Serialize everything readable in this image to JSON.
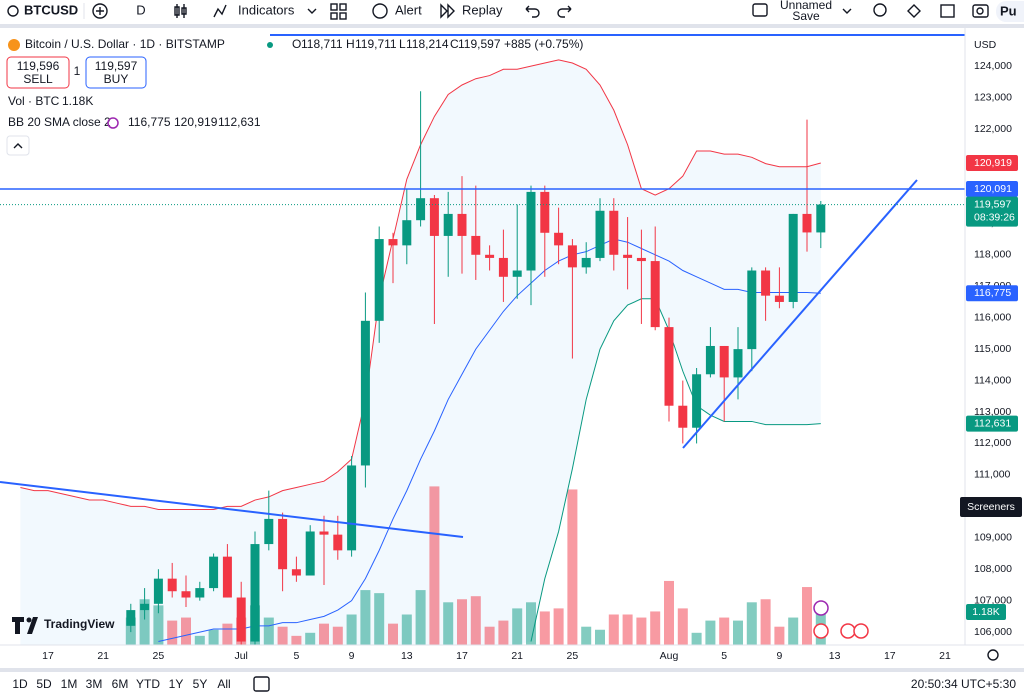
{
  "toolbar": {
    "symbol": "BTCUSD",
    "interval": "D",
    "indicators": "Indicators",
    "alert": "Alert",
    "replay": "Replay",
    "layout_name": "Unnamed",
    "save": "Save",
    "publish": "Pu"
  },
  "legend": {
    "ohlc": [
      {
        "key": "O",
        "value": "118,711"
      },
      {
        "key": "H",
        "value": "119,711"
      },
      {
        "key": "L",
        "value": "118,214"
      },
      {
        "key": "C",
        "value": "119,597"
      }
    ],
    "change": "+885 (+0.75%)",
    "sell_price": "119,596",
    "sell": "SELL",
    "spread": "1",
    "buy_price": "119,597",
    "buy": "BUY",
    "volume_label": "Vol · BTC",
    "volume_value": "1.18K",
    "bb_label": "BB 20 SMA close 2",
    "bb_values": [
      "116,775",
      "120,919",
      "112,631"
    ]
  },
  "screeners": "Screeners",
  "volume_tag": "1.18K",
  "logo": "TradingView",
  "bottom_bar": {
    "ranges": [
      "1D",
      "5D",
      "1M",
      "3M",
      "6M",
      "YTD",
      "1Y",
      "5Y",
      "All"
    ],
    "clock": "20:50:34 UTC+5:30"
  },
  "chart_data": {
    "type": "candlestick",
    "title": "Bitcoin / U.S. Dollar · 1D · BITSTAMP",
    "currency": "USD",
    "categories": [
      null,
      null,
      "17",
      null,
      null,
      null,
      "21",
      null,
      null,
      null,
      "25",
      null,
      null,
      null,
      null,
      null,
      "Jul",
      null,
      null,
      null,
      "5",
      null,
      null,
      null,
      "9",
      null,
      null,
      null,
      "13",
      null,
      null,
      null,
      "17",
      null,
      null,
      null,
      "21",
      null,
      null,
      null,
      "25",
      null,
      null,
      null,
      null,
      null,
      null,
      "Aug",
      null,
      null,
      null,
      "5",
      null,
      null,
      null,
      "9",
      null,
      null,
      null,
      "13",
      null,
      null,
      null,
      "17",
      null,
      null,
      null,
      "21"
    ],
    "open": [
      null,
      null,
      null,
      null,
      null,
      null,
      null,
      null,
      106200,
      106700,
      106900,
      107700,
      107300,
      107100,
      107400,
      108400,
      107100,
      105700,
      108800,
      109600,
      108000,
      107800,
      109200,
      109100,
      108600,
      111300,
      115900,
      118500,
      118300,
      119100,
      119800,
      118600,
      119300,
      118600,
      118000,
      117900,
      117300,
      117500,
      120000,
      118700,
      118300,
      117600,
      117900,
      119400,
      118000,
      117900,
      117800,
      115700,
      113200,
      112500,
      114200,
      115100,
      114100,
      115000,
      117500,
      116700,
      116500,
      119300,
      118711,
      null,
      null,
      null,
      null,
      null,
      null,
      null,
      null,
      null
    ],
    "high": [
      null,
      null,
      null,
      null,
      null,
      null,
      null,
      null,
      106900,
      107400,
      108000,
      108200,
      107800,
      107600,
      108500,
      108800,
      107600,
      109200,
      110500,
      109800,
      108400,
      109400,
      109700,
      109700,
      111600,
      116800,
      118900,
      118700,
      120100,
      123200,
      119900,
      120000,
      120500,
      120200,
      118300,
      118800,
      119600,
      120200,
      120200,
      119500,
      118500,
      118400,
      119800,
      119800,
      119200,
      118800,
      118900,
      116000,
      114000,
      114400,
      115700,
      115100,
      115700,
      117600,
      117600,
      117600,
      119300,
      122300,
      119711,
      null,
      null,
      null,
      null,
      null,
      null,
      null,
      null,
      null
    ],
    "low": [
      null,
      null,
      null,
      null,
      null,
      null,
      null,
      null,
      106000,
      106400,
      106600,
      107100,
      106800,
      107000,
      107300,
      107100,
      105300,
      105200,
      108600,
      107300,
      107600,
      107800,
      107500,
      108300,
      108400,
      110600,
      115200,
      117100,
      117700,
      118900,
      115800,
      117300,
      117400,
      117200,
      117500,
      116500,
      116600,
      116400,
      117300,
      117700,
      114700,
      117400,
      117800,
      117500,
      116900,
      115800,
      115600,
      112700,
      112000,
      112000,
      114100,
      112700,
      113400,
      114300,
      115900,
      116300,
      116300,
      118100,
      118214,
      null,
      null,
      null,
      null,
      null,
      null,
      null,
      null,
      null
    ],
    "close": [
      null,
      null,
      null,
      null,
      null,
      null,
      null,
      null,
      106700,
      106900,
      107700,
      107300,
      107100,
      107400,
      108400,
      107100,
      105700,
      108800,
      109600,
      108000,
      107800,
      109200,
      109100,
      108600,
      111300,
      115900,
      118500,
      118300,
      119100,
      119800,
      118600,
      119300,
      118600,
      118000,
      117900,
      117300,
      117500,
      120000,
      118700,
      118300,
      117600,
      117900,
      119400,
      118000,
      117900,
      117800,
      115700,
      113200,
      112500,
      114200,
      115100,
      114100,
      115000,
      117500,
      116700,
      116500,
      119300,
      118711,
      119597,
      null,
      null,
      null,
      null,
      null,
      null,
      null,
      null,
      null
    ],
    "volume": [
      null,
      null,
      null,
      null,
      null,
      null,
      null,
      null,
      900,
      1500,
      1300,
      800,
      900,
      300,
      500,
      700,
      900,
      1300,
      900,
      600,
      300,
      400,
      700,
      600,
      1000,
      1800,
      1700,
      700,
      1000,
      1800,
      5200,
      1400,
      1500,
      1600,
      600,
      800,
      1200,
      1400,
      1100,
      1200,
      5100,
      600,
      500,
      1000,
      1000,
      900,
      1100,
      2100,
      1200,
      400,
      800,
      900,
      800,
      1400,
      1500,
      600,
      900,
      1900,
      1180,
      null,
      null,
      null,
      null,
      null,
      null,
      null,
      null,
      null
    ],
    "up_color": "#089981",
    "down_color": "#f23645",
    "volume_lim": [
      0,
      20000
    ],
    "bands": {
      "upper": {
        "color": "#f23645",
        "values": [
          110600,
          110500,
          110500,
          110400,
          110300,
          110200,
          110200,
          110100,
          110000,
          110000,
          109900,
          109900,
          109900,
          109900,
          109900,
          110000,
          110000,
          110200,
          110300,
          110500,
          110600,
          110700,
          110800,
          111100,
          111500,
          113400,
          116600,
          118500,
          120400,
          121500,
          122400,
          123100,
          123400,
          123600,
          123700,
          123900,
          123900,
          124000,
          124100,
          124200,
          124100,
          123900,
          123400,
          122600,
          121500,
          120100,
          119900,
          120100,
          120500,
          121300,
          121300,
          121200,
          121200,
          121100,
          120900,
          120800,
          120800,
          120800,
          120919,
          null,
          null,
          null,
          null,
          null,
          null,
          null,
          null,
          null
        ]
      },
      "basis": {
        "color": "#2962ff",
        "values": [
          null,
          null,
          null,
          null,
          null,
          null,
          null,
          null,
          null,
          null,
          105700,
          105800,
          105900,
          106000,
          106100,
          106100,
          106100,
          106200,
          106200,
          106300,
          106300,
          106400,
          106500,
          106700,
          107000,
          107700,
          108600,
          109600,
          110500,
          111500,
          112400,
          113400,
          114200,
          115000,
          115600,
          116200,
          116700,
          117100,
          117500,
          117800,
          118000,
          118100,
          118300,
          118500,
          118400,
          118200,
          118000,
          117800,
          117500,
          117300,
          117100,
          116900,
          116900,
          116800,
          116800,
          116800,
          116800,
          116800,
          116775,
          null,
          null,
          null,
          null,
          null,
          null,
          null,
          null,
          null
        ]
      },
      "lower": {
        "color": "#089981",
        "values": [
          null,
          null,
          null,
          null,
          null,
          null,
          null,
          null,
          null,
          null,
          null,
          null,
          null,
          null,
          null,
          null,
          null,
          null,
          null,
          null,
          null,
          null,
          null,
          null,
          null,
          null,
          null,
          null,
          null,
          null,
          null,
          null,
          null,
          null,
          null,
          null,
          null,
          105700,
          107700,
          109200,
          111200,
          113400,
          115000,
          115900,
          116400,
          116600,
          116600,
          115600,
          114300,
          113200,
          112900,
          112700,
          112700,
          112700,
          112600,
          112600,
          112600,
          112600,
          112631,
          null,
          null,
          null,
          null,
          null,
          null,
          null,
          null,
          null
        ]
      }
    },
    "ylim": [
      105590,
      124990
    ],
    "yticks": [
      {
        "value": 106000,
        "label": "106,000"
      },
      {
        "value": 107000,
        "label": "107,000"
      },
      {
        "value": 108000,
        "label": "108,000"
      },
      {
        "value": 109000,
        "label": "109,000"
      },
      {
        "value": 110000,
        "label": "110,000"
      },
      {
        "value": 111000,
        "label": "111,000"
      },
      {
        "value": 112000,
        "label": "112,000"
      },
      {
        "value": 113000,
        "label": "113,000"
      },
      {
        "value": 114000,
        "label": "114,000"
      },
      {
        "value": 115000,
        "label": "115,000"
      },
      {
        "value": 116000,
        "label": "116,000"
      },
      {
        "value": 117000,
        "label": "117,000"
      },
      {
        "value": 118000,
        "label": "118,000"
      },
      {
        "value": 119000,
        "label": "119,000"
      },
      {
        "value": 120000,
        "label": "120,000"
      },
      {
        "value": 121000,
        "label": "121,000"
      },
      {
        "value": 122000,
        "label": "122,000"
      },
      {
        "value": 123000,
        "label": "123,000"
      },
      {
        "value": 124000,
        "label": "124,000"
      }
    ],
    "grid": false,
    "price_tags": [
      {
        "value": 120919,
        "label": "120,919",
        "color": "#f23645"
      },
      {
        "value": 120091,
        "label": "120,091",
        "color": "#2962ff",
        "line_style": "solid"
      },
      {
        "value": 119597,
        "label": "119,597",
        "sublabel": "08:39:26",
        "color": "#089981",
        "line_style": "dotted"
      },
      {
        "value": 116775,
        "label": "116,775",
        "color": "#2962ff"
      },
      {
        "value": 112631,
        "label": "112,631",
        "color": "#089981"
      }
    ]
  }
}
